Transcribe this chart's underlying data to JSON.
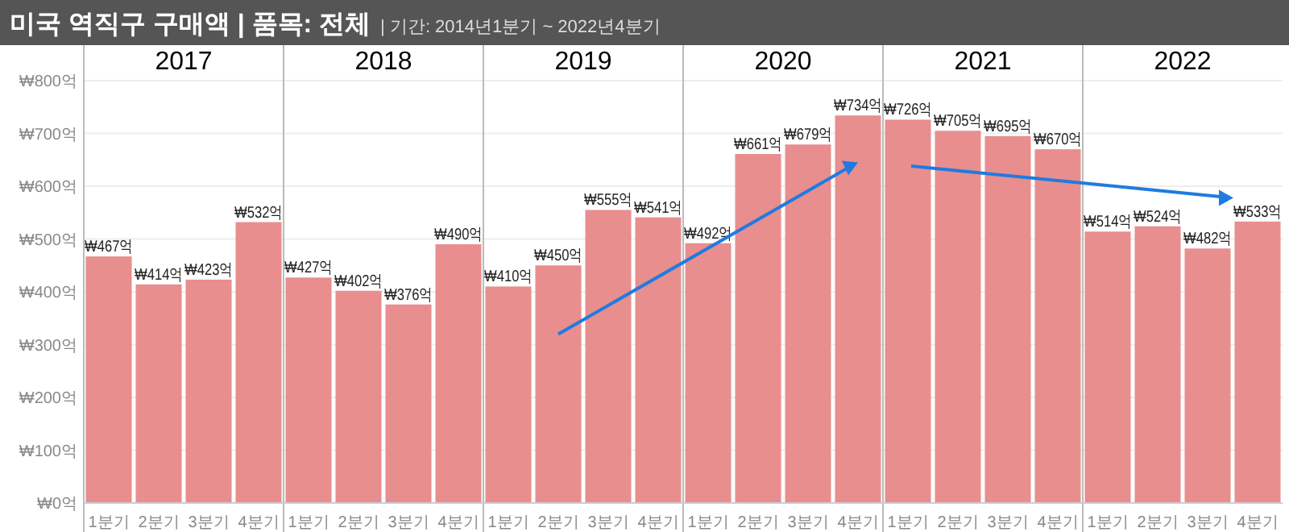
{
  "chart_data": {
    "type": "bar",
    "title": "미국 역직구 구매액 | 품목: 전체",
    "subtitle": "| 기간: 2014년1분기 ~ 2022년4분기",
    "categories": [
      "1분기",
      "2분기",
      "3분기",
      "4분기",
      "1분기",
      "2분기",
      "3분기",
      "4분기",
      "1분기",
      "2분기",
      "3분기",
      "4분기",
      "1분기",
      "2분기",
      "3분기",
      "4분기",
      "1분기",
      "2분기",
      "3분기",
      "4분기",
      "1분기",
      "2분기",
      "3분기",
      "4분기"
    ],
    "values": [
      467,
      414,
      423,
      532,
      427,
      402,
      376,
      490,
      410,
      450,
      555,
      541,
      492,
      661,
      679,
      734,
      726,
      705,
      695,
      670,
      514,
      524,
      482,
      533
    ],
    "value_labels": [
      "₩467억",
      "₩414억",
      "₩423억",
      "₩532억",
      "₩427억",
      "₩402억",
      "₩376억",
      "₩490억",
      "₩410억",
      "₩450억",
      "₩555억",
      "₩541억",
      "₩492억",
      "₩661억",
      "₩679억",
      "₩734억",
      "₩726억",
      "₩705억",
      "₩695억",
      "₩670억",
      "₩514억",
      "₩524억",
      "₩482억",
      "₩533억"
    ],
    "color": "#e88e8e",
    "annotations": [
      "2017",
      "2018",
      "2019",
      "2020",
      "2021",
      "2022"
    ],
    "ylim": [
      0,
      800
    ],
    "yticks": [
      {
        "value": 0,
        "label": "₩0억"
      },
      {
        "value": 100,
        "label": "₩100억"
      },
      {
        "value": 200,
        "label": "₩200억"
      },
      {
        "value": 300,
        "label": "₩300억"
      },
      {
        "value": 400,
        "label": "₩400억"
      },
      {
        "value": 500,
        "label": "₩500억"
      },
      {
        "value": 600,
        "label": "₩600억"
      },
      {
        "value": 700,
        "label": "₩700억"
      },
      {
        "value": 800,
        "label": "₩800억"
      }
    ],
    "grid": "y"
  }
}
